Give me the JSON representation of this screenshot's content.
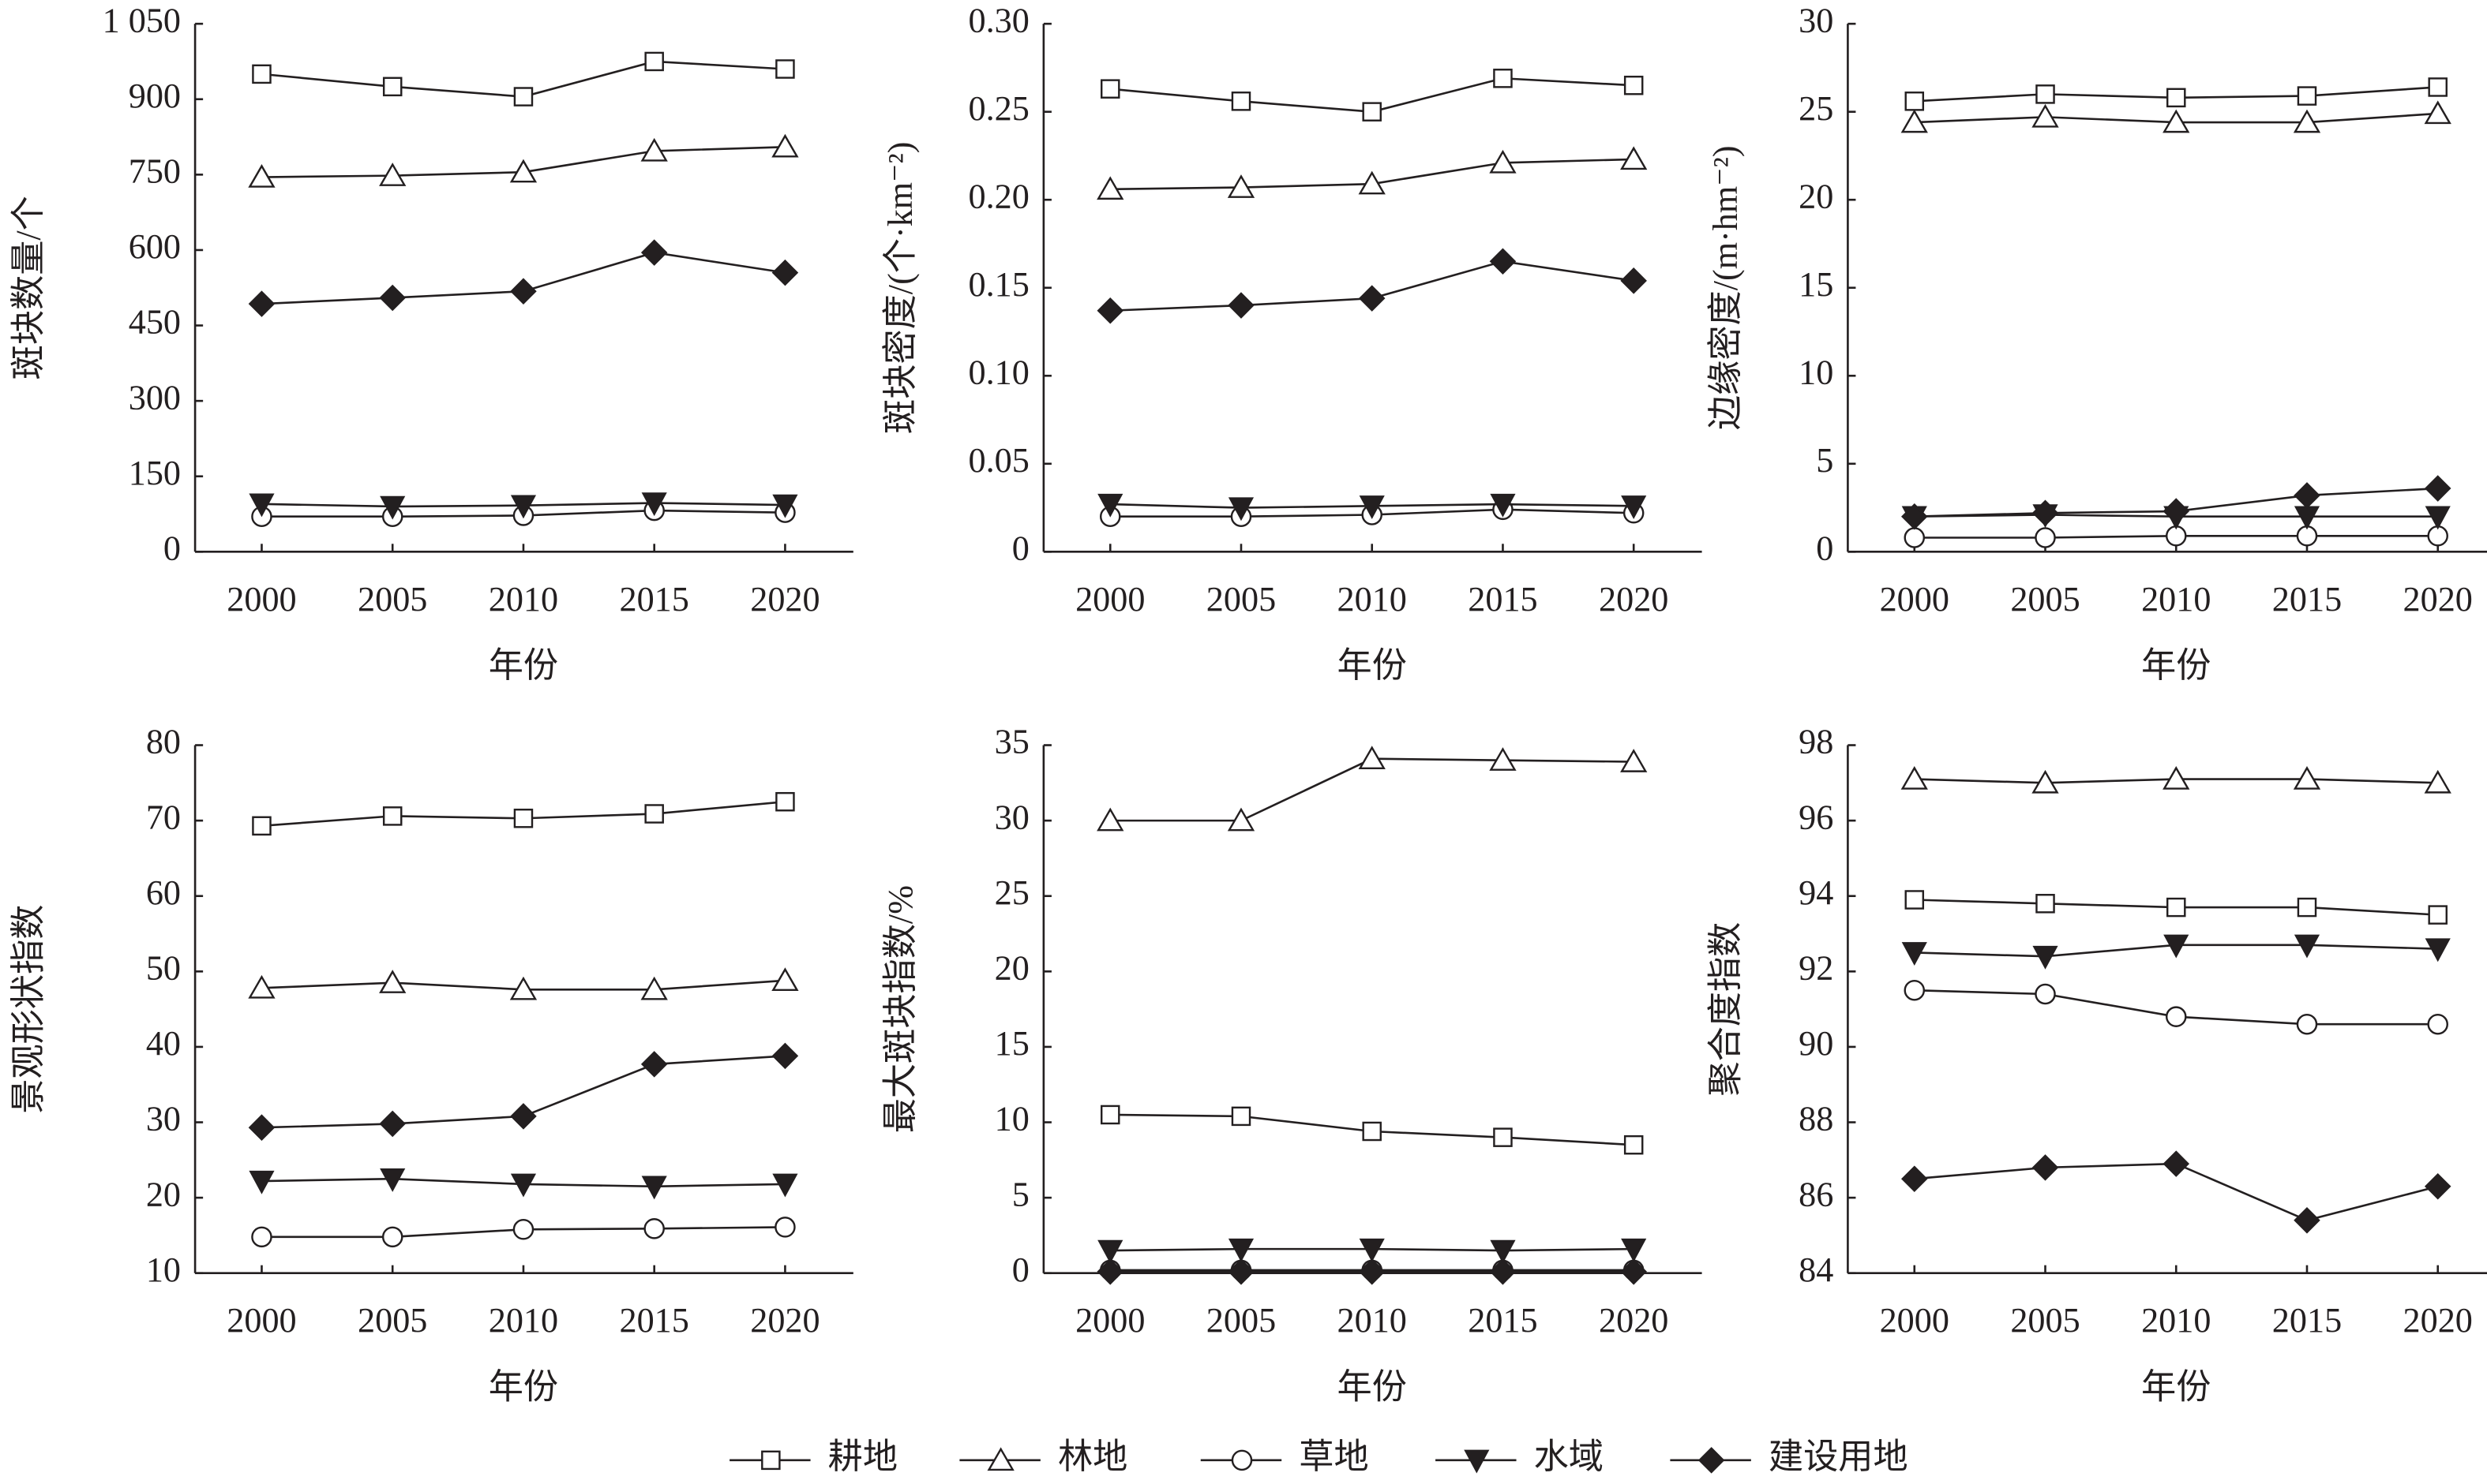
{
  "legend": [
    {
      "name": "耕地",
      "marker": "open-square",
      "color": "#231f20"
    },
    {
      "name": "林地",
      "marker": "open-triangle",
      "color": "#231f20"
    },
    {
      "name": "草地",
      "marker": "open-circle",
      "color": "#231f20"
    },
    {
      "name": "水域",
      "marker": "filled-triangle-down",
      "color": "#231f20"
    },
    {
      "name": "建设用地",
      "marker": "filled-diamond",
      "color": "#231f20"
    }
  ],
  "chart_data": [
    {
      "type": "line",
      "x_label": "年份",
      "y_label": "斑块数量/个",
      "categories": [
        "2000",
        "2005",
        "2010",
        "2015",
        "2020"
      ],
      "ylim": [
        0,
        1050
      ],
      "yticks": [
        0,
        150,
        300,
        450,
        600,
        750,
        900,
        {
          "value": 1050,
          "label": "1 050"
        }
      ],
      "series": [
        {
          "values": [
            950,
            925,
            905,
            975,
            960
          ]
        },
        {
          "values": [
            745,
            748,
            755,
            797,
            805
          ]
        },
        {
          "values": [
            70,
            70,
            72,
            82,
            78
          ]
        },
        {
          "values": [
            95,
            90,
            92,
            97,
            93
          ]
        },
        {
          "values": [
            493,
            505,
            518,
            595,
            555
          ]
        }
      ]
    },
    {
      "type": "line",
      "x_label": "年份",
      "y_label": "斑块密度/(个·km⁻²)",
      "categories": [
        "2000",
        "2005",
        "2010",
        "2015",
        "2020"
      ],
      "ylim": [
        0,
        0.3
      ],
      "yticks": [
        0,
        0.05,
        {
          "value": 0.1,
          "label": "0.10"
        },
        0.15,
        {
          "value": 0.2,
          "label": "0.20"
        },
        0.25,
        {
          "value": 0.3,
          "label": "0.30"
        }
      ],
      "series": [
        {
          "values": [
            0.263,
            0.256,
            0.25,
            0.269,
            0.265
          ]
        },
        {
          "values": [
            0.206,
            0.207,
            0.209,
            0.221,
            0.223
          ]
        },
        {
          "values": [
            0.02,
            0.02,
            0.021,
            0.024,
            0.022
          ]
        },
        {
          "values": [
            0.027,
            0.025,
            0.026,
            0.027,
            0.026
          ]
        },
        {
          "values": [
            0.137,
            0.14,
            0.144,
            0.165,
            0.154
          ]
        }
      ]
    },
    {
      "type": "line",
      "x_label": "年份",
      "y_label": "边缘密度/(m·hm⁻²)",
      "categories": [
        "2000",
        "2005",
        "2010",
        "2015",
        "2020"
      ],
      "ylim": [
        0,
        30
      ],
      "yticks": [
        0,
        5,
        10,
        15,
        20,
        25,
        30
      ],
      "series": [
        {
          "values": [
            25.6,
            26.0,
            25.8,
            25.9,
            26.4
          ]
        },
        {
          "values": [
            24.4,
            24.7,
            24.4,
            24.4,
            24.9
          ]
        },
        {
          "values": [
            0.8,
            0.8,
            0.9,
            0.9,
            0.9
          ]
        },
        {
          "values": [
            2.0,
            2.1,
            2.0,
            2.0,
            2.0
          ]
        },
        {
          "values": [
            2.0,
            2.2,
            2.3,
            3.2,
            3.6
          ]
        }
      ]
    },
    {
      "type": "line",
      "x_label": "年份",
      "y_label": "景观形状指数",
      "categories": [
        "2000",
        "2005",
        "2010",
        "2015",
        "2020"
      ],
      "ylim": [
        10,
        80
      ],
      "yticks": [
        10,
        20,
        30,
        40,
        50,
        60,
        70,
        80
      ],
      "series": [
        {
          "values": [
            69.3,
            70.6,
            70.3,
            70.9,
            72.5
          ]
        },
        {
          "values": [
            47.8,
            48.5,
            47.6,
            47.6,
            48.8
          ]
        },
        {
          "values": [
            14.8,
            14.8,
            15.8,
            15.9,
            16.1
          ]
        },
        {
          "values": [
            22.2,
            22.5,
            21.8,
            21.5,
            21.8
          ]
        },
        {
          "values": [
            29.3,
            29.8,
            30.8,
            37.7,
            38.8
          ]
        }
      ]
    },
    {
      "type": "line",
      "x_label": "年份",
      "y_label": "最大斑块指数/%",
      "categories": [
        "2000",
        "2005",
        "2010",
        "2015",
        "2020"
      ],
      "ylim": [
        0,
        35
      ],
      "yticks": [
        0,
        5,
        10,
        15,
        20,
        25,
        30,
        35
      ],
      "series": [
        {
          "values": [
            10.5,
            10.4,
            9.4,
            9.0,
            8.5
          ]
        },
        {
          "values": [
            30.0,
            30.0,
            34.1,
            34.0,
            33.9
          ]
        },
        {
          "values": [
            0.2,
            0.2,
            0.2,
            0.2,
            0.2
          ]
        },
        {
          "values": [
            1.5,
            1.6,
            1.6,
            1.5,
            1.6
          ]
        },
        {
          "values": [
            0.1,
            0.1,
            0.1,
            0.1,
            0.1
          ]
        }
      ]
    },
    {
      "type": "line",
      "x_label": "年份",
      "y_label": "聚合度指数",
      "categories": [
        "2000",
        "2005",
        "2010",
        "2015",
        "2020"
      ],
      "ylim": [
        84,
        98
      ],
      "yticks": [
        84,
        86,
        88,
        90,
        92,
        94,
        96,
        98
      ],
      "series": [
        {
          "values": [
            93.9,
            93.8,
            93.7,
            93.7,
            93.5
          ]
        },
        {
          "values": [
            97.1,
            97.0,
            97.1,
            97.1,
            97.0
          ]
        },
        {
          "values": [
            91.5,
            91.4,
            90.8,
            90.6,
            90.6
          ]
        },
        {
          "values": [
            92.5,
            92.4,
            92.7,
            92.7,
            92.6
          ]
        },
        {
          "values": [
            86.5,
            86.8,
            86.9,
            85.4,
            86.3
          ]
        }
      ]
    }
  ]
}
